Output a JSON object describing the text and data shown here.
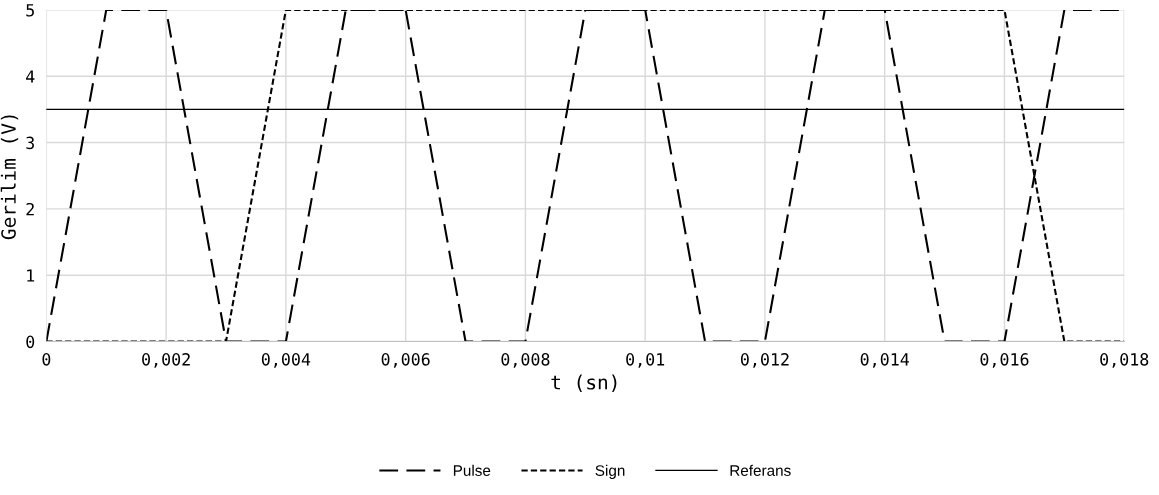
{
  "chart_data": {
    "type": "line",
    "xlabel": "t (sn)",
    "ylabel": "Gerilim (V)",
    "xlim": [
      0,
      0.018
    ],
    "ylim": [
      0,
      5
    ],
    "xticks": [
      0,
      {
        "value": 0.002,
        "label": "0,002"
      },
      {
        "value": 0.004,
        "label": "0,004"
      },
      {
        "value": 0.006,
        "label": "0,006"
      },
      {
        "value": 0.008,
        "label": "0,008"
      },
      {
        "value": 0.01,
        "label": "0,01"
      },
      {
        "value": 0.012,
        "label": "0,012"
      },
      {
        "value": 0.014,
        "label": "0,014"
      },
      {
        "value": 0.016,
        "label": "0,016"
      },
      {
        "value": 0.018,
        "label": "0,018"
      }
    ],
    "yticks": [
      0,
      1,
      2,
      3,
      4,
      5
    ],
    "grid": true,
    "legend": "bottom",
    "marker": "none",
    "series": [
      {
        "name": "Pulse",
        "color": "#000000",
        "line_style": "dashed",
        "x": [
          0,
          0.001,
          0.002,
          0.003,
          0.004,
          0.005,
          0.006,
          0.007,
          0.008,
          0.009,
          0.01,
          0.011,
          0.012,
          0.013,
          0.014,
          0.015,
          0.016,
          0.017,
          0.018
        ],
        "values": [
          0,
          5,
          5,
          0,
          0,
          5,
          5,
          0,
          0,
          5,
          5,
          0,
          0,
          5,
          5,
          0,
          0,
          5,
          5
        ]
      },
      {
        "name": "Sign",
        "color": "#000000",
        "line_style": "dotted",
        "x": [
          0,
          0.003,
          0.004,
          0.016,
          0.017,
          0.018
        ],
        "values": [
          0,
          0,
          5,
          5,
          0,
          0
        ]
      },
      {
        "name": "Referans",
        "color": "#000000",
        "line_style": "solid",
        "x": [
          0,
          0.018
        ],
        "values": [
          3.5,
          3.5
        ]
      }
    ]
  }
}
